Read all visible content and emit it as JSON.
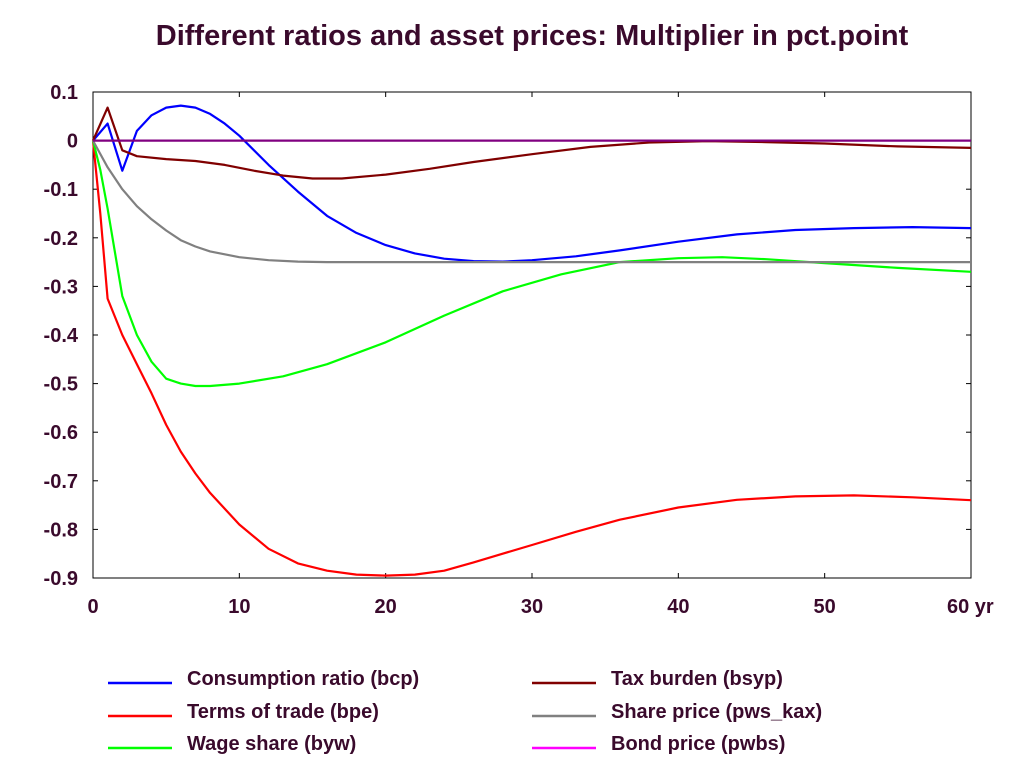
{
  "chart_data": {
    "type": "line",
    "title": "Different ratios and asset prices: Multiplier in pct.point",
    "xlabel": "",
    "ylabel": "",
    "x_unit": "yr",
    "xlim": [
      0,
      60
    ],
    "ylim": [
      -0.9,
      0.1
    ],
    "x_ticks": [
      0,
      10,
      20,
      30,
      40,
      50,
      60
    ],
    "x_tick_labels": [
      "0",
      "10",
      "20",
      "30",
      "40",
      "50",
      "60 yr"
    ],
    "y_ticks": [
      0.1,
      0,
      -0.1,
      -0.2,
      -0.3,
      -0.4,
      -0.5,
      -0.6,
      -0.7,
      -0.8,
      -0.9
    ],
    "y_tick_labels": [
      "0.1",
      "0",
      "-0.1",
      "-0.2",
      "-0.3",
      "-0.4",
      "-0.5",
      "-0.6",
      "-0.7",
      "-0.8",
      "-0.9"
    ],
    "grid": false,
    "legend_position": "bottom",
    "series": [
      {
        "name": "Consumption ratio (bcp)",
        "color": "#0000ff",
        "points": [
          [
            0,
            0
          ],
          [
            1,
            0.035
          ],
          [
            2,
            -0.062
          ],
          [
            3,
            0.02
          ],
          [
            4,
            0.052
          ],
          [
            5,
            0.068
          ],
          [
            6,
            0.072
          ],
          [
            7,
            0.068
          ],
          [
            8,
            0.055
          ],
          [
            9,
            0.035
          ],
          [
            10,
            0.01
          ],
          [
            12,
            -0.05
          ],
          [
            14,
            -0.105
          ],
          [
            16,
            -0.155
          ],
          [
            18,
            -0.19
          ],
          [
            20,
            -0.215
          ],
          [
            22,
            -0.232
          ],
          [
            24,
            -0.243
          ],
          [
            26,
            -0.248
          ],
          [
            28,
            -0.249
          ],
          [
            30,
            -0.246
          ],
          [
            33,
            -0.238
          ],
          [
            36,
            -0.226
          ],
          [
            40,
            -0.208
          ],
          [
            44,
            -0.193
          ],
          [
            48,
            -0.184
          ],
          [
            52,
            -0.18
          ],
          [
            56,
            -0.178
          ],
          [
            60,
            -0.18
          ]
        ]
      },
      {
        "name": "Terms of trade (bpe)",
        "color": "#ff0000",
        "points": [
          [
            0,
            0
          ],
          [
            0.5,
            -0.15
          ],
          [
            1,
            -0.325
          ],
          [
            2,
            -0.4
          ],
          [
            3,
            -0.46
          ],
          [
            4,
            -0.52
          ],
          [
            5,
            -0.585
          ],
          [
            6,
            -0.64
          ],
          [
            7,
            -0.685
          ],
          [
            8,
            -0.725
          ],
          [
            10,
            -0.79
          ],
          [
            12,
            -0.84
          ],
          [
            14,
            -0.87
          ],
          [
            16,
            -0.885
          ],
          [
            18,
            -0.893
          ],
          [
            20,
            -0.895
          ],
          [
            22,
            -0.893
          ],
          [
            24,
            -0.885
          ],
          [
            26,
            -0.868
          ],
          [
            28,
            -0.85
          ],
          [
            30,
            -0.832
          ],
          [
            33,
            -0.805
          ],
          [
            36,
            -0.78
          ],
          [
            40,
            -0.755
          ],
          [
            44,
            -0.739
          ],
          [
            48,
            -0.732
          ],
          [
            52,
            -0.73
          ],
          [
            56,
            -0.734
          ],
          [
            60,
            -0.74
          ]
        ]
      },
      {
        "name": "Wage share (byw)",
        "color": "#00ff00",
        "points": [
          [
            0,
            0
          ],
          [
            0.5,
            -0.06
          ],
          [
            1,
            -0.14
          ],
          [
            2,
            -0.32
          ],
          [
            3,
            -0.4
          ],
          [
            4,
            -0.455
          ],
          [
            5,
            -0.49
          ],
          [
            6,
            -0.5
          ],
          [
            7,
            -0.505
          ],
          [
            8,
            -0.505
          ],
          [
            10,
            -0.5
          ],
          [
            13,
            -0.485
          ],
          [
            16,
            -0.46
          ],
          [
            20,
            -0.415
          ],
          [
            24,
            -0.36
          ],
          [
            28,
            -0.31
          ],
          [
            32,
            -0.275
          ],
          [
            36,
            -0.25
          ],
          [
            40,
            -0.242
          ],
          [
            43,
            -0.24
          ],
          [
            46,
            -0.244
          ],
          [
            50,
            -0.252
          ],
          [
            55,
            -0.262
          ],
          [
            60,
            -0.27
          ]
        ]
      },
      {
        "name": "Tax burden (bsyp)",
        "color": "#800000",
        "points": [
          [
            0,
            0
          ],
          [
            1,
            0.068
          ],
          [
            2,
            -0.02
          ],
          [
            3,
            -0.032
          ],
          [
            5,
            -0.038
          ],
          [
            7,
            -0.042
          ],
          [
            9,
            -0.05
          ],
          [
            11,
            -0.062
          ],
          [
            13,
            -0.072
          ],
          [
            15,
            -0.078
          ],
          [
            17,
            -0.078
          ],
          [
            20,
            -0.07
          ],
          [
            23,
            -0.058
          ],
          [
            26,
            -0.044
          ],
          [
            30,
            -0.028
          ],
          [
            34,
            -0.013
          ],
          [
            38,
            -0.004
          ],
          [
            42,
            -0.001
          ],
          [
            46,
            -0.003
          ],
          [
            50,
            -0.006
          ],
          [
            55,
            -0.012
          ],
          [
            60,
            -0.015
          ]
        ]
      },
      {
        "name": "Share price (pws_kax)",
        "color": "#808080",
        "points": [
          [
            0,
            0
          ],
          [
            1,
            -0.055
          ],
          [
            2,
            -0.1
          ],
          [
            3,
            -0.135
          ],
          [
            4,
            -0.162
          ],
          [
            5,
            -0.185
          ],
          [
            6,
            -0.205
          ],
          [
            7,
            -0.218
          ],
          [
            8,
            -0.228
          ],
          [
            10,
            -0.24
          ],
          [
            12,
            -0.246
          ],
          [
            14,
            -0.249
          ],
          [
            16,
            -0.25
          ],
          [
            20,
            -0.25
          ],
          [
            30,
            -0.25
          ],
          [
            40,
            -0.25
          ],
          [
            50,
            -0.25
          ],
          [
            60,
            -0.25
          ]
        ]
      },
      {
        "name": "Bond price (pwbs)",
        "color": "#ff00ff",
        "points": [
          [
            0,
            0
          ],
          [
            60,
            0
          ]
        ]
      }
    ],
    "line_overlay_color": "#800080"
  }
}
